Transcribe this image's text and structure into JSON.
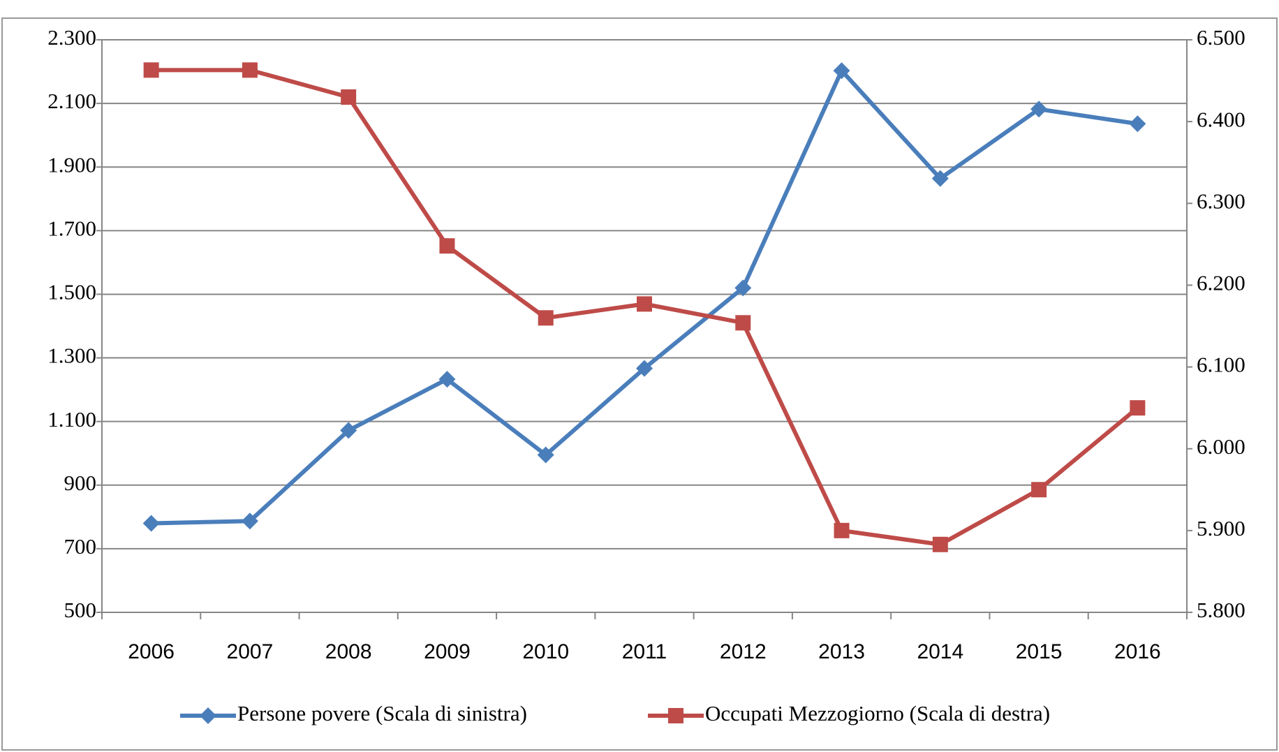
{
  "chart_data": {
    "type": "line",
    "categories": [
      "2006",
      "2007",
      "2008",
      "2009",
      "2010",
      "2011",
      "2012",
      "2013",
      "2014",
      "2015",
      "2016"
    ],
    "series": [
      {
        "name": "Persone povere (Scala di sinistra)",
        "color": "#4a7ebb",
        "marker": "diamond",
        "values": [
          780,
          787,
          1072,
          1233,
          995,
          1267,
          1520,
          2203,
          1864,
          2082,
          2036
        ]
      },
      {
        "name": "Occupati Mezzogiorno (Scala di destra)",
        "color": "#be4b48",
        "marker": "square",
        "axis": "y2",
        "values": [
          6463,
          6463,
          6430,
          6248,
          6160,
          6177,
          6154,
          5900,
          5883,
          5950,
          6050
        ]
      }
    ],
    "ylim": [
      500,
      2300
    ],
    "yticks": [
      500,
      700,
      900,
      {
        "value": 1100,
        "label": "1.100"
      },
      {
        "value": 1300,
        "label": "1.300"
      },
      {
        "value": 1500,
        "label": "1.500"
      },
      {
        "value": 1700,
        "label": "1.700"
      },
      {
        "value": 1900,
        "label": "1.900"
      },
      {
        "value": 2100,
        "label": "2.100"
      },
      {
        "value": 2300,
        "label": "2.300"
      }
    ],
    "y2lim": [
      5800,
      6500
    ],
    "y2ticks": [
      {
        "value": 5800,
        "label": "5.800"
      },
      {
        "value": 5900,
        "label": "5.900"
      },
      {
        "value": 6000,
        "label": "6.000"
      },
      {
        "value": 6100,
        "label": "6.100"
      },
      {
        "value": 6200,
        "label": "6.200"
      },
      {
        "value": 6300,
        "label": "6.300"
      },
      {
        "value": 6400,
        "label": "6.400"
      },
      {
        "value": 6500,
        "label": "6.500"
      }
    ],
    "grid": true,
    "legend": "bottom"
  }
}
